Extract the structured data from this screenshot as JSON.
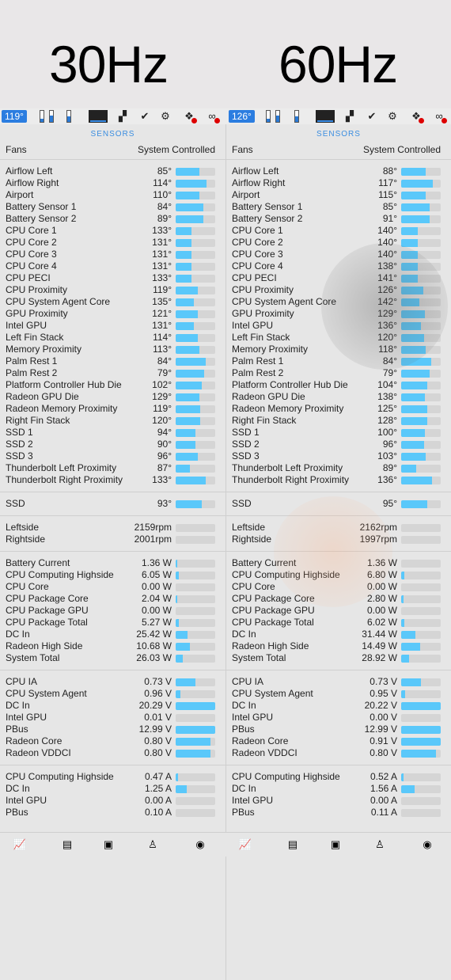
{
  "titles": {
    "left": "30Hz",
    "right": "60Hz"
  },
  "menubar": {
    "left": {
      "temp": "119°",
      "icons": [
        "ssd-meter-icon",
        "mem-meter-icon",
        "cpu-meter-icon",
        "cpu-graph-icon",
        "layout-icon",
        "checkmark-shield-icon",
        "gear-icon",
        "dropbox-icon",
        "creative-cloud-icon"
      ]
    },
    "right": {
      "temp": "126°"
    }
  },
  "left": {
    "header": "SENSORS",
    "fans_label": "Fans",
    "fans_value": "System Controlled",
    "temps": [
      {
        "label": "Airflow Left",
        "value": "85°",
        "fill": 0.6
      },
      {
        "label": "Airflow Right",
        "value": "114°",
        "fill": 0.78
      },
      {
        "label": "Airport",
        "value": "110°",
        "fill": 0.6
      },
      {
        "label": "Battery Sensor 1",
        "value": "84°",
        "fill": 0.7
      },
      {
        "label": "Battery Sensor 2",
        "value": "89°",
        "fill": 0.7
      },
      {
        "label": "CPU Core 1",
        "value": "133°",
        "fill": 0.4
      },
      {
        "label": "CPU Core 2",
        "value": "131°",
        "fill": 0.4
      },
      {
        "label": "CPU Core 3",
        "value": "131°",
        "fill": 0.4
      },
      {
        "label": "CPU Core 4",
        "value": "131°",
        "fill": 0.4
      },
      {
        "label": "CPU PECI",
        "value": "133°",
        "fill": 0.4
      },
      {
        "label": "CPU Proximity",
        "value": "119°",
        "fill": 0.55
      },
      {
        "label": "CPU System Agent Core",
        "value": "135°",
        "fill": 0.45
      },
      {
        "label": "GPU Proximity",
        "value": "121°",
        "fill": 0.55
      },
      {
        "label": "Intel GPU",
        "value": "131°",
        "fill": 0.45
      },
      {
        "label": "Left Fin Stack",
        "value": "114°",
        "fill": 0.55
      },
      {
        "label": "Memory Proximity",
        "value": "113°",
        "fill": 0.6
      },
      {
        "label": "Palm Rest 1",
        "value": "84°",
        "fill": 0.75
      },
      {
        "label": "Palm Rest 2",
        "value": "79°",
        "fill": 0.72
      },
      {
        "label": "Platform Controller Hub Die",
        "value": "102°",
        "fill": 0.65
      },
      {
        "label": "Radeon GPU Die",
        "value": "129°",
        "fill": 0.6
      },
      {
        "label": "Radeon Memory Proximity",
        "value": "119°",
        "fill": 0.62
      },
      {
        "label": "Right Fin Stack",
        "value": "120°",
        "fill": 0.62
      },
      {
        "label": "SSD 1",
        "value": "94°",
        "fill": 0.5
      },
      {
        "label": "SSD 2",
        "value": "90°",
        "fill": 0.5
      },
      {
        "label": "SSD 3",
        "value": "96°",
        "fill": 0.55
      },
      {
        "label": "Thunderbolt Left Proximity",
        "value": "87°",
        "fill": 0.35
      },
      {
        "label": "Thunderbolt Right Proximity",
        "value": "133°",
        "fill": 0.75
      }
    ],
    "ssd": [
      {
        "label": "SSD",
        "value": "93°",
        "fill": 0.65
      }
    ],
    "fans": [
      {
        "label": "Leftside",
        "value": "2159rpm",
        "fill": 0.0
      },
      {
        "label": "Rightside",
        "value": "2001rpm",
        "fill": 0.0
      }
    ],
    "power": [
      {
        "label": "Battery Current",
        "value": "1.36 W",
        "fill": 0.03
      },
      {
        "label": "CPU Computing Highside",
        "value": "6.05 W",
        "fill": 0.08
      },
      {
        "label": "CPU Core",
        "value": "0.00 W",
        "fill": 0.0
      },
      {
        "label": "CPU Package Core",
        "value": "2.04 W",
        "fill": 0.04
      },
      {
        "label": "CPU Package GPU",
        "value": "0.00 W",
        "fill": 0.0
      },
      {
        "label": "CPU Package Total",
        "value": "5.27 W",
        "fill": 0.07
      },
      {
        "label": "DC In",
        "value": "25.42 W",
        "fill": 0.3
      },
      {
        "label": "Radeon High Side",
        "value": "10.68 W",
        "fill": 0.35
      },
      {
        "label": "System Total",
        "value": "26.03 W",
        "fill": 0.18
      }
    ],
    "voltage": [
      {
        "label": "CPU IA",
        "value": "0.73 V",
        "fill": 0.5
      },
      {
        "label": "CPU System Agent",
        "value": "0.96 V",
        "fill": 0.12
      },
      {
        "label": "DC In",
        "value": "20.29 V",
        "fill": 1.0
      },
      {
        "label": "Intel GPU",
        "value": "0.01 V",
        "fill": 0.0
      },
      {
        "label": "PBus",
        "value": "12.99 V",
        "fill": 1.0
      },
      {
        "label": "Radeon Core",
        "value": "0.80 V",
        "fill": 0.88
      },
      {
        "label": "Radeon VDDCI",
        "value": "0.80 V",
        "fill": 0.88
      }
    ],
    "current": [
      {
        "label": "CPU Computing Highside",
        "value": "0.47 A",
        "fill": 0.05
      },
      {
        "label": "DC In",
        "value": "1.25 A",
        "fill": 0.28
      },
      {
        "label": "Intel GPU",
        "value": "0.00 A",
        "fill": 0.0
      },
      {
        "label": "PBus",
        "value": "0.10 A",
        "fill": 0.0
      }
    ]
  },
  "right": {
    "header": "SENSORS",
    "fans_label": "Fans",
    "fans_value": "System Controlled",
    "temps": [
      {
        "label": "Airflow Left",
        "value": "88°",
        "fill": 0.62
      },
      {
        "label": "Airflow Right",
        "value": "117°",
        "fill": 0.8
      },
      {
        "label": "Airport",
        "value": "115°",
        "fill": 0.62
      },
      {
        "label": "Battery Sensor 1",
        "value": "85°",
        "fill": 0.72
      },
      {
        "label": "Battery Sensor 2",
        "value": "91°",
        "fill": 0.72
      },
      {
        "label": "CPU Core 1",
        "value": "140°",
        "fill": 0.42
      },
      {
        "label": "CPU Core 2",
        "value": "140°",
        "fill": 0.42
      },
      {
        "label": "CPU Core 3",
        "value": "140°",
        "fill": 0.42
      },
      {
        "label": "CPU Core 4",
        "value": "138°",
        "fill": 0.42
      },
      {
        "label": "CPU PECI",
        "value": "141°",
        "fill": 0.42
      },
      {
        "label": "CPU Proximity",
        "value": "126°",
        "fill": 0.55
      },
      {
        "label": "CPU System Agent Core",
        "value": "142°",
        "fill": 0.45
      },
      {
        "label": "GPU Proximity",
        "value": "129°",
        "fill": 0.6
      },
      {
        "label": "Intel GPU",
        "value": "136°",
        "fill": 0.5
      },
      {
        "label": "Left Fin Stack",
        "value": "120°",
        "fill": 0.58
      },
      {
        "label": "Memory Proximity",
        "value": "118°",
        "fill": 0.62
      },
      {
        "label": "Palm Rest 1",
        "value": "84°",
        "fill": 0.75
      },
      {
        "label": "Palm Rest 2",
        "value": "79°",
        "fill": 0.72
      },
      {
        "label": "Platform Controller Hub Die",
        "value": "104°",
        "fill": 0.66
      },
      {
        "label": "Radeon GPU Die",
        "value": "138°",
        "fill": 0.6
      },
      {
        "label": "Radeon Memory Proximity",
        "value": "125°",
        "fill": 0.65
      },
      {
        "label": "Right Fin Stack",
        "value": "128°",
        "fill": 0.65
      },
      {
        "label": "SSD 1",
        "value": "100°",
        "fill": 0.6
      },
      {
        "label": "SSD 2",
        "value": "96°",
        "fill": 0.58
      },
      {
        "label": "SSD 3",
        "value": "103°",
        "fill": 0.62
      },
      {
        "label": "Thunderbolt Left Proximity",
        "value": "89°",
        "fill": 0.38
      },
      {
        "label": "Thunderbolt Right Proximity",
        "value": "136°",
        "fill": 0.78
      }
    ],
    "ssd": [
      {
        "label": "SSD",
        "value": "95°",
        "fill": 0.65
      }
    ],
    "fans": [
      {
        "label": "Leftside",
        "value": "2162rpm",
        "fill": 0.0
      },
      {
        "label": "Rightside",
        "value": "1997rpm",
        "fill": 0.0
      }
    ],
    "power": [
      {
        "label": "Battery Current",
        "value": "1.36 W",
        "fill": 0.0
      },
      {
        "label": "CPU Computing Highside",
        "value": "6.80 W",
        "fill": 0.08
      },
      {
        "label": "CPU Core",
        "value": "0.00 W",
        "fill": 0.0
      },
      {
        "label": "CPU Package Core",
        "value": "2.80 W",
        "fill": 0.05
      },
      {
        "label": "CPU Package GPU",
        "value": "0.00 W",
        "fill": 0.0
      },
      {
        "label": "CPU Package Total",
        "value": "6.02 W",
        "fill": 0.08
      },
      {
        "label": "DC In",
        "value": "31.44 W",
        "fill": 0.35
      },
      {
        "label": "Radeon High Side",
        "value": "14.49 W",
        "fill": 0.48
      },
      {
        "label": "System Total",
        "value": "28.92 W",
        "fill": 0.2
      }
    ],
    "voltage": [
      {
        "label": "CPU IA",
        "value": "0.73 V",
        "fill": 0.5
      },
      {
        "label": "CPU System Agent",
        "value": "0.95 V",
        "fill": 0.1
      },
      {
        "label": "DC In",
        "value": "20.22 V",
        "fill": 1.0
      },
      {
        "label": "Intel GPU",
        "value": "0.00 V",
        "fill": 0.0
      },
      {
        "label": "PBus",
        "value": "12.99 V",
        "fill": 1.0
      },
      {
        "label": "Radeon Core",
        "value": "0.91 V",
        "fill": 1.0
      },
      {
        "label": "Radeon VDDCI",
        "value": "0.80 V",
        "fill": 0.88
      }
    ],
    "current": [
      {
        "label": "CPU Computing Highside",
        "value": "0.52 A",
        "fill": 0.05
      },
      {
        "label": "DC In",
        "value": "1.56 A",
        "fill": 0.33
      },
      {
        "label": "Intel GPU",
        "value": "0.00 A",
        "fill": 0.0
      },
      {
        "label": "PBus",
        "value": "0.11 A",
        "fill": 0.0
      }
    ]
  },
  "dock": [
    "activity-monitor-icon",
    "console-icon",
    "terminal-icon",
    "automator-icon",
    "istat-icon"
  ],
  "colors": {
    "accent": "#3b8ee0",
    "bar": "#5ac8fa",
    "track": "#d5d5d5"
  }
}
